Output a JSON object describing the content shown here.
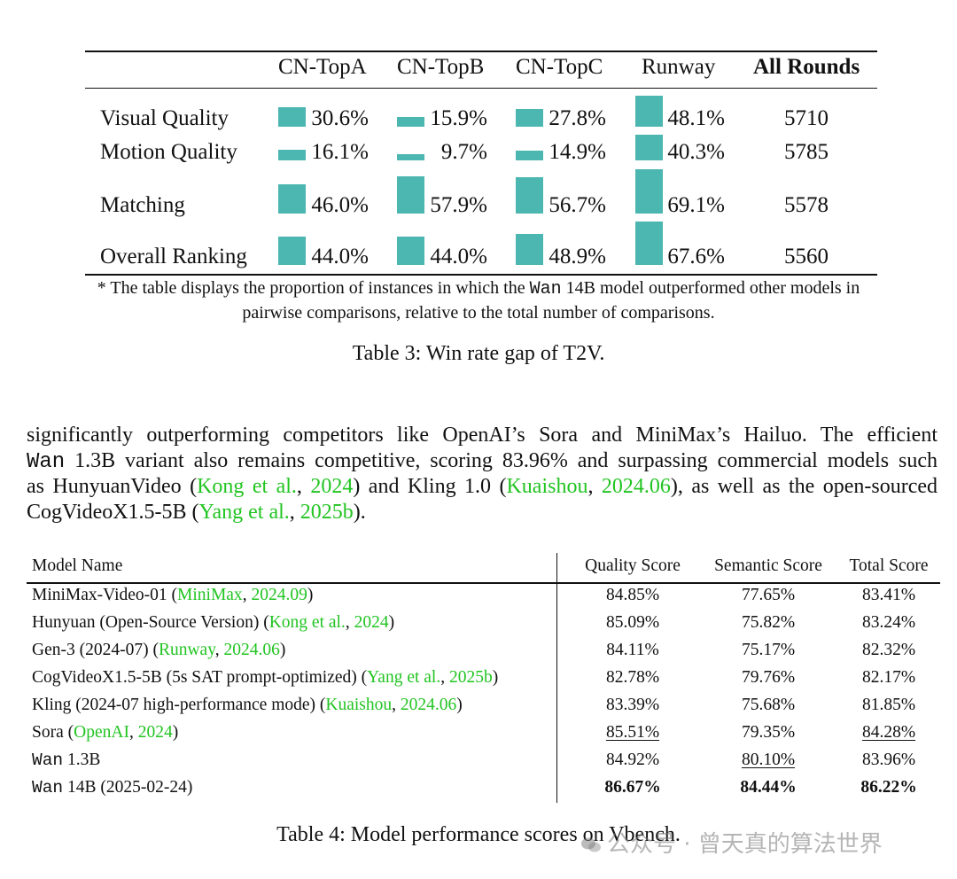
{
  "table3": {
    "columns": [
      "CN-TopA",
      "CN-TopB",
      "CN-TopC",
      "Runway",
      "All Rounds"
    ],
    "rows": [
      {
        "label": "Visual Quality",
        "values": [
          "30.6%",
          "15.9%",
          "27.8%",
          "48.1%"
        ],
        "rounds": "5710"
      },
      {
        "label": "Motion Quality",
        "values": [
          "16.1%",
          "9.7%",
          "14.9%",
          "40.3%"
        ],
        "rounds": "5785"
      },
      {
        "label": "Matching",
        "values": [
          "46.0%",
          "57.9%",
          "56.7%",
          "69.1%"
        ],
        "rounds": "5578"
      },
      {
        "label": "Overall Ranking",
        "values": [
          "44.0%",
          "44.0%",
          "48.9%",
          "67.6%"
        ],
        "rounds": "5560"
      }
    ],
    "bar_color": "#4cb6b1",
    "note_line1_a": "* The table displays the proportion of instances in which the ",
    "note_line1_code": "Wan",
    "note_line1_b": " 14B model outperformed other models in",
    "note_line2": "pairwise comparisons, relative to the total number of comparisons.",
    "caption": "Table 3: Win rate gap of T2V."
  },
  "paragraph": {
    "l1": "significantly outperforming competitors like OpenAI’s Sora and MiniMax’s Hailuo. The efficient",
    "l2_code": "Wan",
    "l2_rest": " 1.3B variant also remains competitive, scoring 83.96% and surpassing commercial models such",
    "l3_a": "as HunyuanVideo (",
    "l3_cite1": "Kong et al.",
    "l3_sep1": ", ",
    "l3_cite1_year": "2024",
    "l3_b": ") and Kling 1.0 (",
    "l3_cite2": "Kuaishou",
    "l3_sep2": ", ",
    "l3_cite2_year": "2024.06",
    "l3_c": "), as well as the open-sourced",
    "l4_a": "CogVideoX1.5-5B (",
    "l4_cite": "Yang et al.",
    "l4_sep": ", ",
    "l4_cite_year": "2025b",
    "l4_b": ")."
  },
  "table4": {
    "headers": {
      "name": "Model Name",
      "quality": "Quality Score",
      "semantic": "Semantic Score",
      "total": "Total Score"
    },
    "rows": [
      {
        "pre": "MiniMax-Video-01 (",
        "cite": "MiniMax",
        "sep": ", ",
        "year": "2024.09",
        "post": ")",
        "quality": "84.85%",
        "semantic": "77.65%",
        "total": "83.41%"
      },
      {
        "pre": "Hunyuan (Open-Source Version) (",
        "cite": "Kong et al.",
        "sep": ", ",
        "year": "2024",
        "post": ")",
        "quality": "85.09%",
        "semantic": "75.82%",
        "total": "83.24%"
      },
      {
        "pre": "Gen-3 (2024-07) (",
        "cite": "Runway",
        "sep": ", ",
        "year": "2024.06",
        "post": ")",
        "quality": "84.11%",
        "semantic": "75.17%",
        "total": "82.32%"
      },
      {
        "pre": "CogVideoX1.5-5B (5s SAT prompt-optimized) (",
        "cite": "Yang et al.",
        "sep": ", ",
        "year": "2025b",
        "post": ")",
        "quality": "82.78%",
        "semantic": "79.76%",
        "total": "82.17%"
      },
      {
        "pre": "Kling (2024-07 high-performance mode) (",
        "cite": "Kuaishou",
        "sep": ", ",
        "year": "2024.06",
        "post": ")",
        "quality": "83.39%",
        "semantic": "75.68%",
        "total": "81.85%"
      },
      {
        "pre": "Sora (",
        "cite": "OpenAI",
        "sep": ", ",
        "year": "2024",
        "post": ")",
        "quality": "85.51%",
        "semantic": "79.35%",
        "total": "84.28%"
      },
      {
        "code": "Wan",
        "rest": " 1.3B",
        "quality": "84.92%",
        "semantic": "80.10%",
        "total": "83.96%"
      },
      {
        "code": "Wan",
        "rest": " 14B (2025-02-24)",
        "quality": "86.67%",
        "semantic": "84.44%",
        "total": "86.22%"
      }
    ],
    "caption": "Table 4: Model performance scores on Vbench."
  },
  "watermark": "公众号 · 曾天真的算法世界"
}
